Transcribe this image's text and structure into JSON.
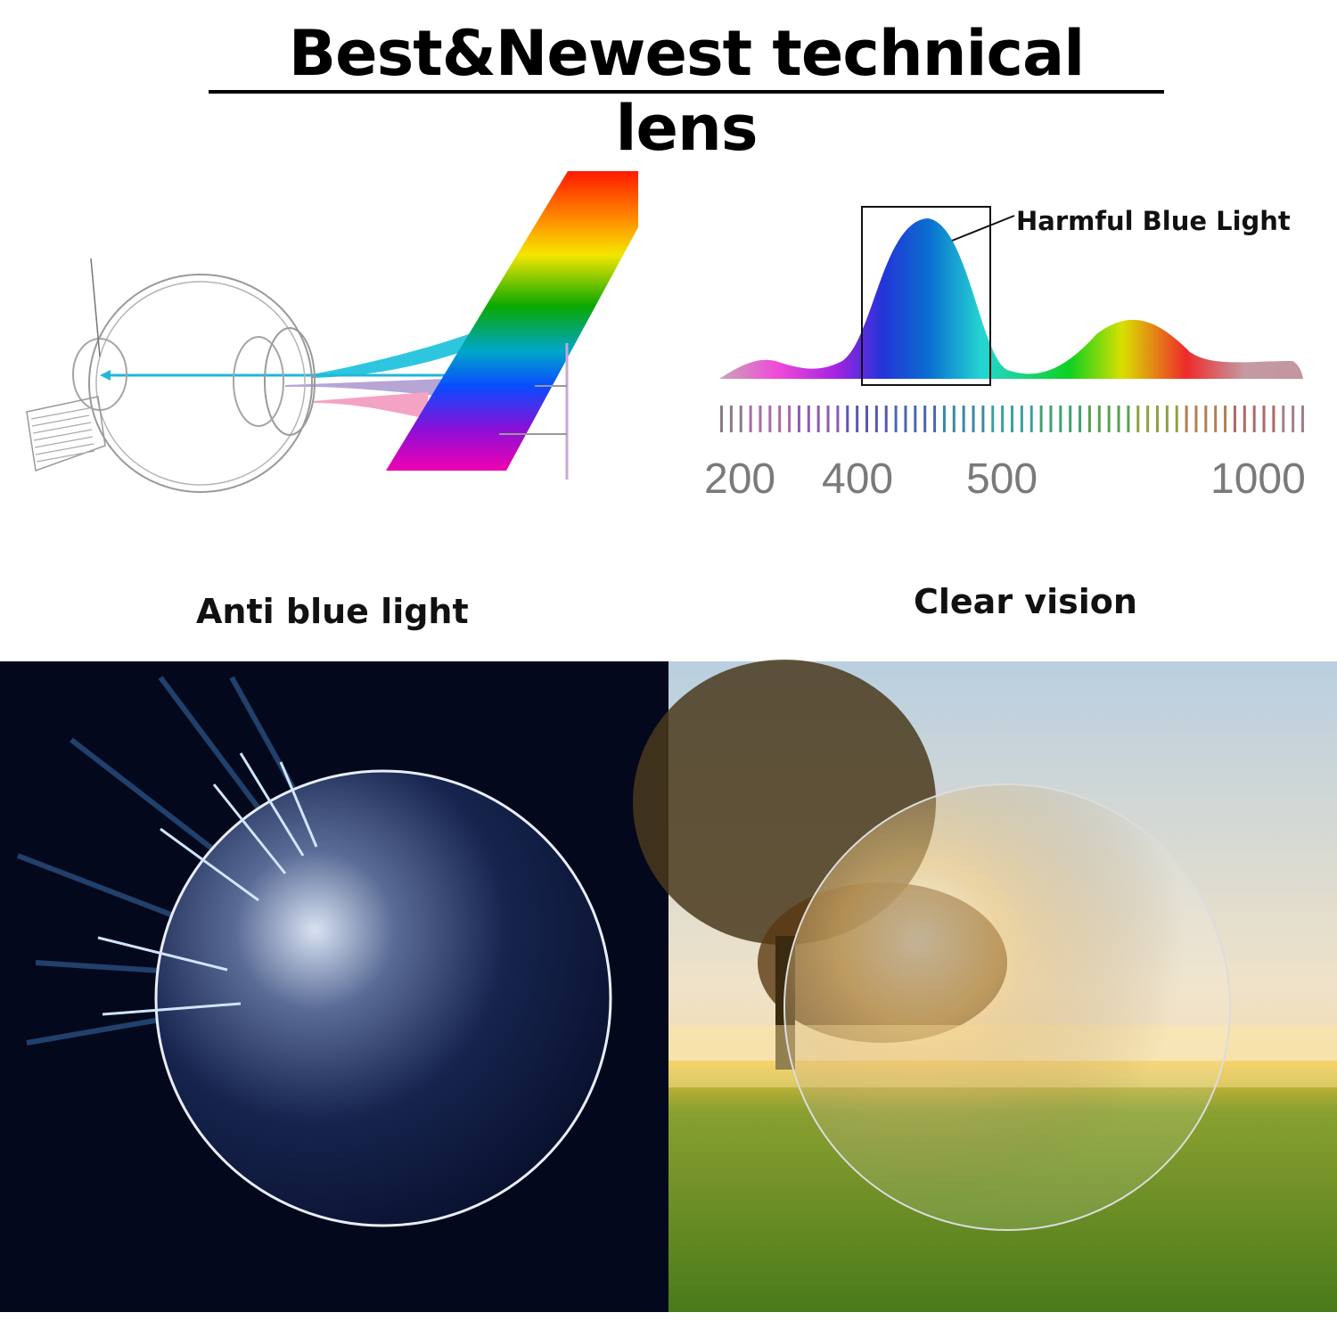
{
  "header": {
    "title": "Best&Newest technical lens"
  },
  "spectrum": {
    "callout": "Harmful Blue Light",
    "axis_labels": [
      "200",
      "400",
      "500",
      "1000"
    ],
    "highlight_color": "#1f3fd6"
  },
  "panels": {
    "left_caption": "Anti blue light",
    "right_caption": "Clear vision"
  }
}
